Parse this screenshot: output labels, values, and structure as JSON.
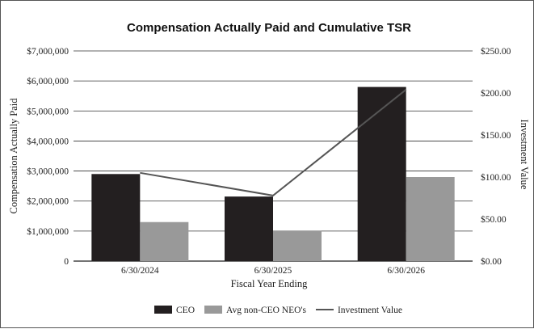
{
  "chart_data": {
    "type": "bar",
    "title": "Compensation Actually Paid and Cumulative TSR",
    "xlabel": "Fiscal Year Ending",
    "ylabel": "Compensation Actually Paid",
    "y2label": "Investment Value",
    "categories": [
      "6/30/2024",
      "6/30/2025",
      "6/30/2026"
    ],
    "ylim": [
      0,
      7000000
    ],
    "y_ticks": [
      "0",
      "$1,000,000",
      "$2,000,000",
      "$3,000,000",
      "$4,000,000",
      "$5,000,000",
      "$6,000,000",
      "$7,000,000"
    ],
    "y2lim": [
      0,
      250
    ],
    "y2_ticks": [
      "$0.00",
      "$50.00",
      "$100.00",
      "$150.00",
      "$200.00",
      "$250.00"
    ],
    "grid": true,
    "legend_position": "bottom",
    "series": [
      {
        "name": "CEO",
        "kind": "bar",
        "color": "#231f20",
        "values": [
          2900000,
          2150000,
          5800000
        ]
      },
      {
        "name": "Avg non-CEO NEO's",
        "kind": "bar",
        "color": "#999999",
        "values": [
          1300000,
          1000000,
          2800000
        ]
      },
      {
        "name": "Investment Value",
        "kind": "line",
        "axis": "right",
        "color": "#555555",
        "values": [
          105,
          78,
          204
        ]
      }
    ]
  }
}
